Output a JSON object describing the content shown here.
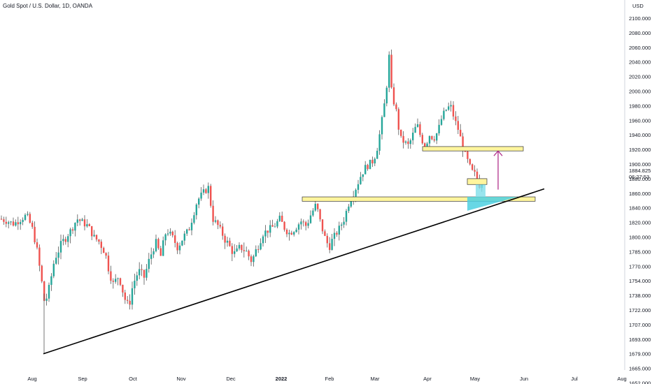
{
  "header": {
    "title": "Gold Spot / U.S. Dollar, 1D, OANDA"
  },
  "chart_data": {
    "type": "candlestick",
    "title": "Gold Spot / U.S. Dollar, 1D, OANDA",
    "currency": "USD",
    "price_current": "1884.825",
    "countdown": "06:27:53",
    "y_ticks": [
      "2100.000",
      "2080.000",
      "2060.000",
      "2040.000",
      "2020.000",
      "2000.000",
      "1980.000",
      "1960.000",
      "1940.000",
      "1920.000",
      "1900.000",
      "1880.000",
      "1860.000",
      "1840.000",
      "1820.000",
      "1800.000",
      "1785.000",
      "1770.000",
      "1754.000",
      "1738.000",
      "1722.000",
      "1707.000",
      "1693.000",
      "1679.000",
      "1665.000",
      "1652.000"
    ],
    "x_ticks": [
      {
        "label": "Aug",
        "bold": false
      },
      {
        "label": "Sep",
        "bold": false
      },
      {
        "label": "Oct",
        "bold": false
      },
      {
        "label": "Nov",
        "bold": false
      },
      {
        "label": "Dec",
        "bold": false
      },
      {
        "label": "2022",
        "bold": true
      },
      {
        "label": "Feb",
        "bold": false
      },
      {
        "label": "Mar",
        "bold": false
      },
      {
        "label": "Apr",
        "bold": false
      },
      {
        "label": "May",
        "bold": false
      },
      {
        "label": "Jun",
        "bold": false
      },
      {
        "label": "Jul",
        "bold": false
      },
      {
        "label": "Aug",
        "bold": false
      }
    ],
    "colors": {
      "up": "#26a69a",
      "down": "#ef5350",
      "zone": "#fff59d",
      "zone_border": "#333333",
      "trend": "#000000",
      "arrow": "#b0318c",
      "cyan": "#4dd0e1"
    },
    "zones": [
      {
        "from": 1849,
        "to": 1855
      },
      {
        "from": 1918,
        "to": 1924
      },
      {
        "from": 1872,
        "to": 1880
      }
    ],
    "trendline": {
      "from_price": 1679,
      "to_price": 1866
    },
    "candles": []
  }
}
